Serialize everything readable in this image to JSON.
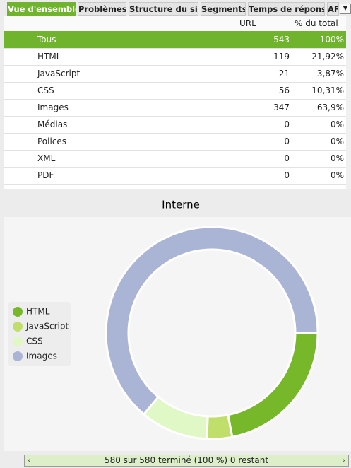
{
  "tabs": [
    "Vue d'ensemble",
    "Problèmes",
    "Structure du site",
    "Segments",
    "Temps de réponse",
    "AF"
  ],
  "table": {
    "columns": [
      "URL",
      "% du total"
    ],
    "rows": [
      [
        "Tous",
        543,
        "100%"
      ],
      [
        "HTML",
        119,
        "21,92%"
      ],
      [
        "JavaScript",
        21,
        "3,87%"
      ],
      [
        "CSS",
        56,
        "10,31%"
      ],
      [
        "Images",
        347,
        "63,9%"
      ],
      [
        "Médias",
        0,
        "0%"
      ],
      [
        "Polices",
        0,
        "0%"
      ],
      [
        "XML",
        0,
        "0%"
      ],
      [
        "PDF",
        0,
        "0%"
      ]
    ]
  },
  "chart_data": {
    "type": "pie",
    "title": "Interne",
    "categories": [
      "HTML",
      "JavaScript",
      "CSS",
      "Images"
    ],
    "values": [
      119,
      21,
      56,
      347
    ],
    "colors": [
      "#76b82a",
      "#bfdf6a",
      "#e0f7c6",
      "#aab5d6"
    ],
    "donut": true,
    "legend": "left"
  },
  "status_bar": "580 sur 580 terminé (100 %) 0 restant"
}
